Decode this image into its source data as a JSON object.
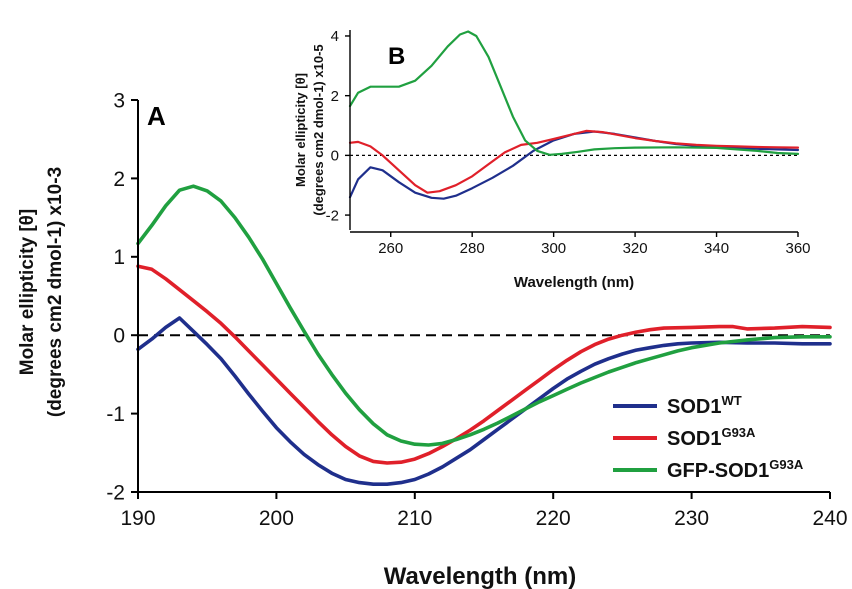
{
  "chart_data": [
    {
      "panel_label": "A",
      "type": "line",
      "xlabel": "Wavelength (nm)",
      "ylabel_line1": "Molar ellipticity [θ]",
      "ylabel_line2": "(degrees cm2 dmol-1) x10-3",
      "xlim": [
        190,
        240
      ],
      "ylim": [
        -2,
        3
      ],
      "xticks": [
        "190",
        "200",
        "210",
        "220",
        "230",
        "240"
      ],
      "yticks": [
        "-2",
        "-1",
        "0",
        "1",
        "2",
        "3"
      ],
      "zero_line": "dashed",
      "legend_position": "bottom-right",
      "series": [
        {
          "name": "SOD1",
          "sup": "WT",
          "color": "#1f2f8c",
          "points": [
            [
              190,
              -0.18
            ],
            [
              191,
              -0.05
            ],
            [
              192,
              0.1
            ],
            [
              193,
              0.22
            ],
            [
              194,
              0.05
            ],
            [
              195,
              -0.12
            ],
            [
              196,
              -0.3
            ],
            [
              197,
              -0.52
            ],
            [
              198,
              -0.75
            ],
            [
              199,
              -0.97
            ],
            [
              200,
              -1.18
            ],
            [
              201,
              -1.36
            ],
            [
              202,
              -1.52
            ],
            [
              203,
              -1.65
            ],
            [
              204,
              -1.76
            ],
            [
              205,
              -1.84
            ],
            [
              206,
              -1.88
            ],
            [
              207,
              -1.9
            ],
            [
              208,
              -1.9
            ],
            [
              209,
              -1.88
            ],
            [
              210,
              -1.84
            ],
            [
              211,
              -1.77
            ],
            [
              212,
              -1.68
            ],
            [
              213,
              -1.57
            ],
            [
              214,
              -1.46
            ],
            [
              215,
              -1.33
            ],
            [
              216,
              -1.2
            ],
            [
              217,
              -1.07
            ],
            [
              218,
              -0.94
            ],
            [
              219,
              -0.81
            ],
            [
              220,
              -0.68
            ],
            [
              221,
              -0.56
            ],
            [
              222,
              -0.46
            ],
            [
              223,
              -0.37
            ],
            [
              224,
              -0.3
            ],
            [
              225,
              -0.24
            ],
            [
              226,
              -0.19
            ],
            [
              227,
              -0.16
            ],
            [
              228,
              -0.13
            ],
            [
              229,
              -0.11
            ],
            [
              230,
              -0.1
            ],
            [
              232,
              -0.09
            ],
            [
              234,
              -0.1
            ],
            [
              236,
              -0.1
            ],
            [
              238,
              -0.11
            ],
            [
              240,
              -0.11
            ]
          ]
        },
        {
          "name": "SOD1",
          "sup": "G93A",
          "color": "#e0202a",
          "points": [
            [
              190,
              0.88
            ],
            [
              191,
              0.84
            ],
            [
              192,
              0.72
            ],
            [
              193,
              0.58
            ],
            [
              194,
              0.44
            ],
            [
              195,
              0.3
            ],
            [
              196,
              0.15
            ],
            [
              197,
              -0.02
            ],
            [
              198,
              -0.2
            ],
            [
              199,
              -0.38
            ],
            [
              200,
              -0.56
            ],
            [
              201,
              -0.74
            ],
            [
              202,
              -0.92
            ],
            [
              203,
              -1.1
            ],
            [
              204,
              -1.27
            ],
            [
              205,
              -1.42
            ],
            [
              206,
              -1.54
            ],
            [
              207,
              -1.61
            ],
            [
              208,
              -1.63
            ],
            [
              209,
              -1.62
            ],
            [
              210,
              -1.58
            ],
            [
              211,
              -1.51
            ],
            [
              212,
              -1.42
            ],
            [
              213,
              -1.32
            ],
            [
              214,
              -1.21
            ],
            [
              215,
              -1.09
            ],
            [
              216,
              -0.96
            ],
            [
              217,
              -0.83
            ],
            [
              218,
              -0.7
            ],
            [
              219,
              -0.57
            ],
            [
              220,
              -0.44
            ],
            [
              221,
              -0.32
            ],
            [
              222,
              -0.21
            ],
            [
              223,
              -0.12
            ],
            [
              224,
              -0.05
            ],
            [
              225,
              0.0
            ],
            [
              226,
              0.04
            ],
            [
              227,
              0.07
            ],
            [
              228,
              0.09
            ],
            [
              230,
              0.1
            ],
            [
              232,
              0.11
            ],
            [
              233,
              0.11
            ],
            [
              234,
              0.08
            ],
            [
              236,
              0.09
            ],
            [
              238,
              0.11
            ],
            [
              240,
              0.1
            ]
          ]
        },
        {
          "name": "GFP-SOD1",
          "sup": "G93A",
          "color": "#20a040",
          "points": [
            [
              190,
              1.17
            ],
            [
              191,
              1.4
            ],
            [
              192,
              1.65
            ],
            [
              193,
              1.85
            ],
            [
              194,
              1.9
            ],
            [
              195,
              1.84
            ],
            [
              196,
              1.71
            ],
            [
              197,
              1.5
            ],
            [
              198,
              1.25
            ],
            [
              199,
              0.97
            ],
            [
              200,
              0.66
            ],
            [
              201,
              0.35
            ],
            [
              202,
              0.05
            ],
            [
              203,
              -0.24
            ],
            [
              204,
              -0.5
            ],
            [
              205,
              -0.74
            ],
            [
              206,
              -0.95
            ],
            [
              207,
              -1.13
            ],
            [
              208,
              -1.27
            ],
            [
              209,
              -1.35
            ],
            [
              210,
              -1.39
            ],
            [
              211,
              -1.4
            ],
            [
              212,
              -1.38
            ],
            [
              213,
              -1.33
            ],
            [
              214,
              -1.27
            ],
            [
              215,
              -1.2
            ],
            [
              216,
              -1.12
            ],
            [
              217,
              -1.03
            ],
            [
              218,
              -0.94
            ],
            [
              219,
              -0.85
            ],
            [
              220,
              -0.77
            ],
            [
              221,
              -0.69
            ],
            [
              222,
              -0.61
            ],
            [
              223,
              -0.54
            ],
            [
              224,
              -0.47
            ],
            [
              225,
              -0.41
            ],
            [
              226,
              -0.35
            ],
            [
              227,
              -0.3
            ],
            [
              228,
              -0.25
            ],
            [
              229,
              -0.2
            ],
            [
              230,
              -0.16
            ],
            [
              232,
              -0.1
            ],
            [
              234,
              -0.06
            ],
            [
              236,
              -0.03
            ],
            [
              238,
              -0.02
            ],
            [
              240,
              -0.02
            ]
          ]
        }
      ]
    },
    {
      "panel_label": "B",
      "type": "line",
      "xlabel": "Wavelength (nm)",
      "ylabel_line1": "Molar ellipticity [θ]",
      "ylabel_line2": "(degrees cm2 dmol-1) x10-5",
      "xlim": [
        250,
        360
      ],
      "ylim": [
        -2.5,
        4.2
      ],
      "xticks": [
        "260",
        "280",
        "300",
        "320",
        "340",
        "360"
      ],
      "yticks": [
        "-2",
        "0",
        "2",
        "4"
      ],
      "zero_line": "dotted",
      "series": [
        {
          "name": "SOD1",
          "sup": "WT",
          "color": "#1f2f8c",
          "points": [
            [
              250,
              -1.4
            ],
            [
              252,
              -0.8
            ],
            [
              255,
              -0.4
            ],
            [
              258,
              -0.5
            ],
            [
              262,
              -0.9
            ],
            [
              266,
              -1.25
            ],
            [
              270,
              -1.42
            ],
            [
              273,
              -1.45
            ],
            [
              276,
              -1.35
            ],
            [
              280,
              -1.1
            ],
            [
              285,
              -0.75
            ],
            [
              290,
              -0.35
            ],
            [
              295,
              0.15
            ],
            [
              300,
              0.5
            ],
            [
              305,
              0.72
            ],
            [
              310,
              0.8
            ],
            [
              315,
              0.72
            ],
            [
              320,
              0.6
            ],
            [
              325,
              0.48
            ],
            [
              330,
              0.38
            ],
            [
              335,
              0.32
            ],
            [
              340,
              0.28
            ],
            [
              345,
              0.25
            ],
            [
              350,
              0.22
            ],
            [
              355,
              0.2
            ],
            [
              360,
              0.18
            ]
          ]
        },
        {
          "name": "SOD1",
          "sup": "G93A",
          "color": "#e0202a",
          "points": [
            [
              250,
              0.42
            ],
            [
              252,
              0.45
            ],
            [
              255,
              0.3
            ],
            [
              258,
              0.0
            ],
            [
              262,
              -0.5
            ],
            [
              266,
              -1.0
            ],
            [
              269,
              -1.25
            ],
            [
              272,
              -1.2
            ],
            [
              276,
              -1.0
            ],
            [
              280,
              -0.7
            ],
            [
              284,
              -0.3
            ],
            [
              288,
              0.1
            ],
            [
              292,
              0.35
            ],
            [
              296,
              0.42
            ],
            [
              300,
              0.55
            ],
            [
              305,
              0.72
            ],
            [
              308,
              0.82
            ],
            [
              312,
              0.78
            ],
            [
              316,
              0.68
            ],
            [
              320,
              0.58
            ],
            [
              325,
              0.48
            ],
            [
              330,
              0.4
            ],
            [
              335,
              0.35
            ],
            [
              340,
              0.32
            ],
            [
              345,
              0.3
            ],
            [
              350,
              0.28
            ],
            [
              355,
              0.27
            ],
            [
              360,
              0.26
            ]
          ]
        },
        {
          "name": "GFP-SOD1",
          "sup": "G93A",
          "color": "#20a040",
          "points": [
            [
              250,
              1.65
            ],
            [
              252,
              2.1
            ],
            [
              255,
              2.3
            ],
            [
              258,
              2.3
            ],
            [
              262,
              2.3
            ],
            [
              266,
              2.5
            ],
            [
              270,
              3.0
            ],
            [
              274,
              3.65
            ],
            [
              277,
              4.05
            ],
            [
              279,
              4.15
            ],
            [
              281,
              4.0
            ],
            [
              284,
              3.3
            ],
            [
              287,
              2.3
            ],
            [
              290,
              1.3
            ],
            [
              293,
              0.5
            ],
            [
              296,
              0.15
            ],
            [
              299,
              0.02
            ],
            [
              302,
              0.05
            ],
            [
              306,
              0.12
            ],
            [
              310,
              0.2
            ],
            [
              315,
              0.24
            ],
            [
              320,
              0.26
            ],
            [
              330,
              0.27
            ],
            [
              340,
              0.25
            ],
            [
              350,
              0.15
            ],
            [
              355,
              0.08
            ],
            [
              360,
              0.05
            ]
          ]
        }
      ]
    }
  ]
}
